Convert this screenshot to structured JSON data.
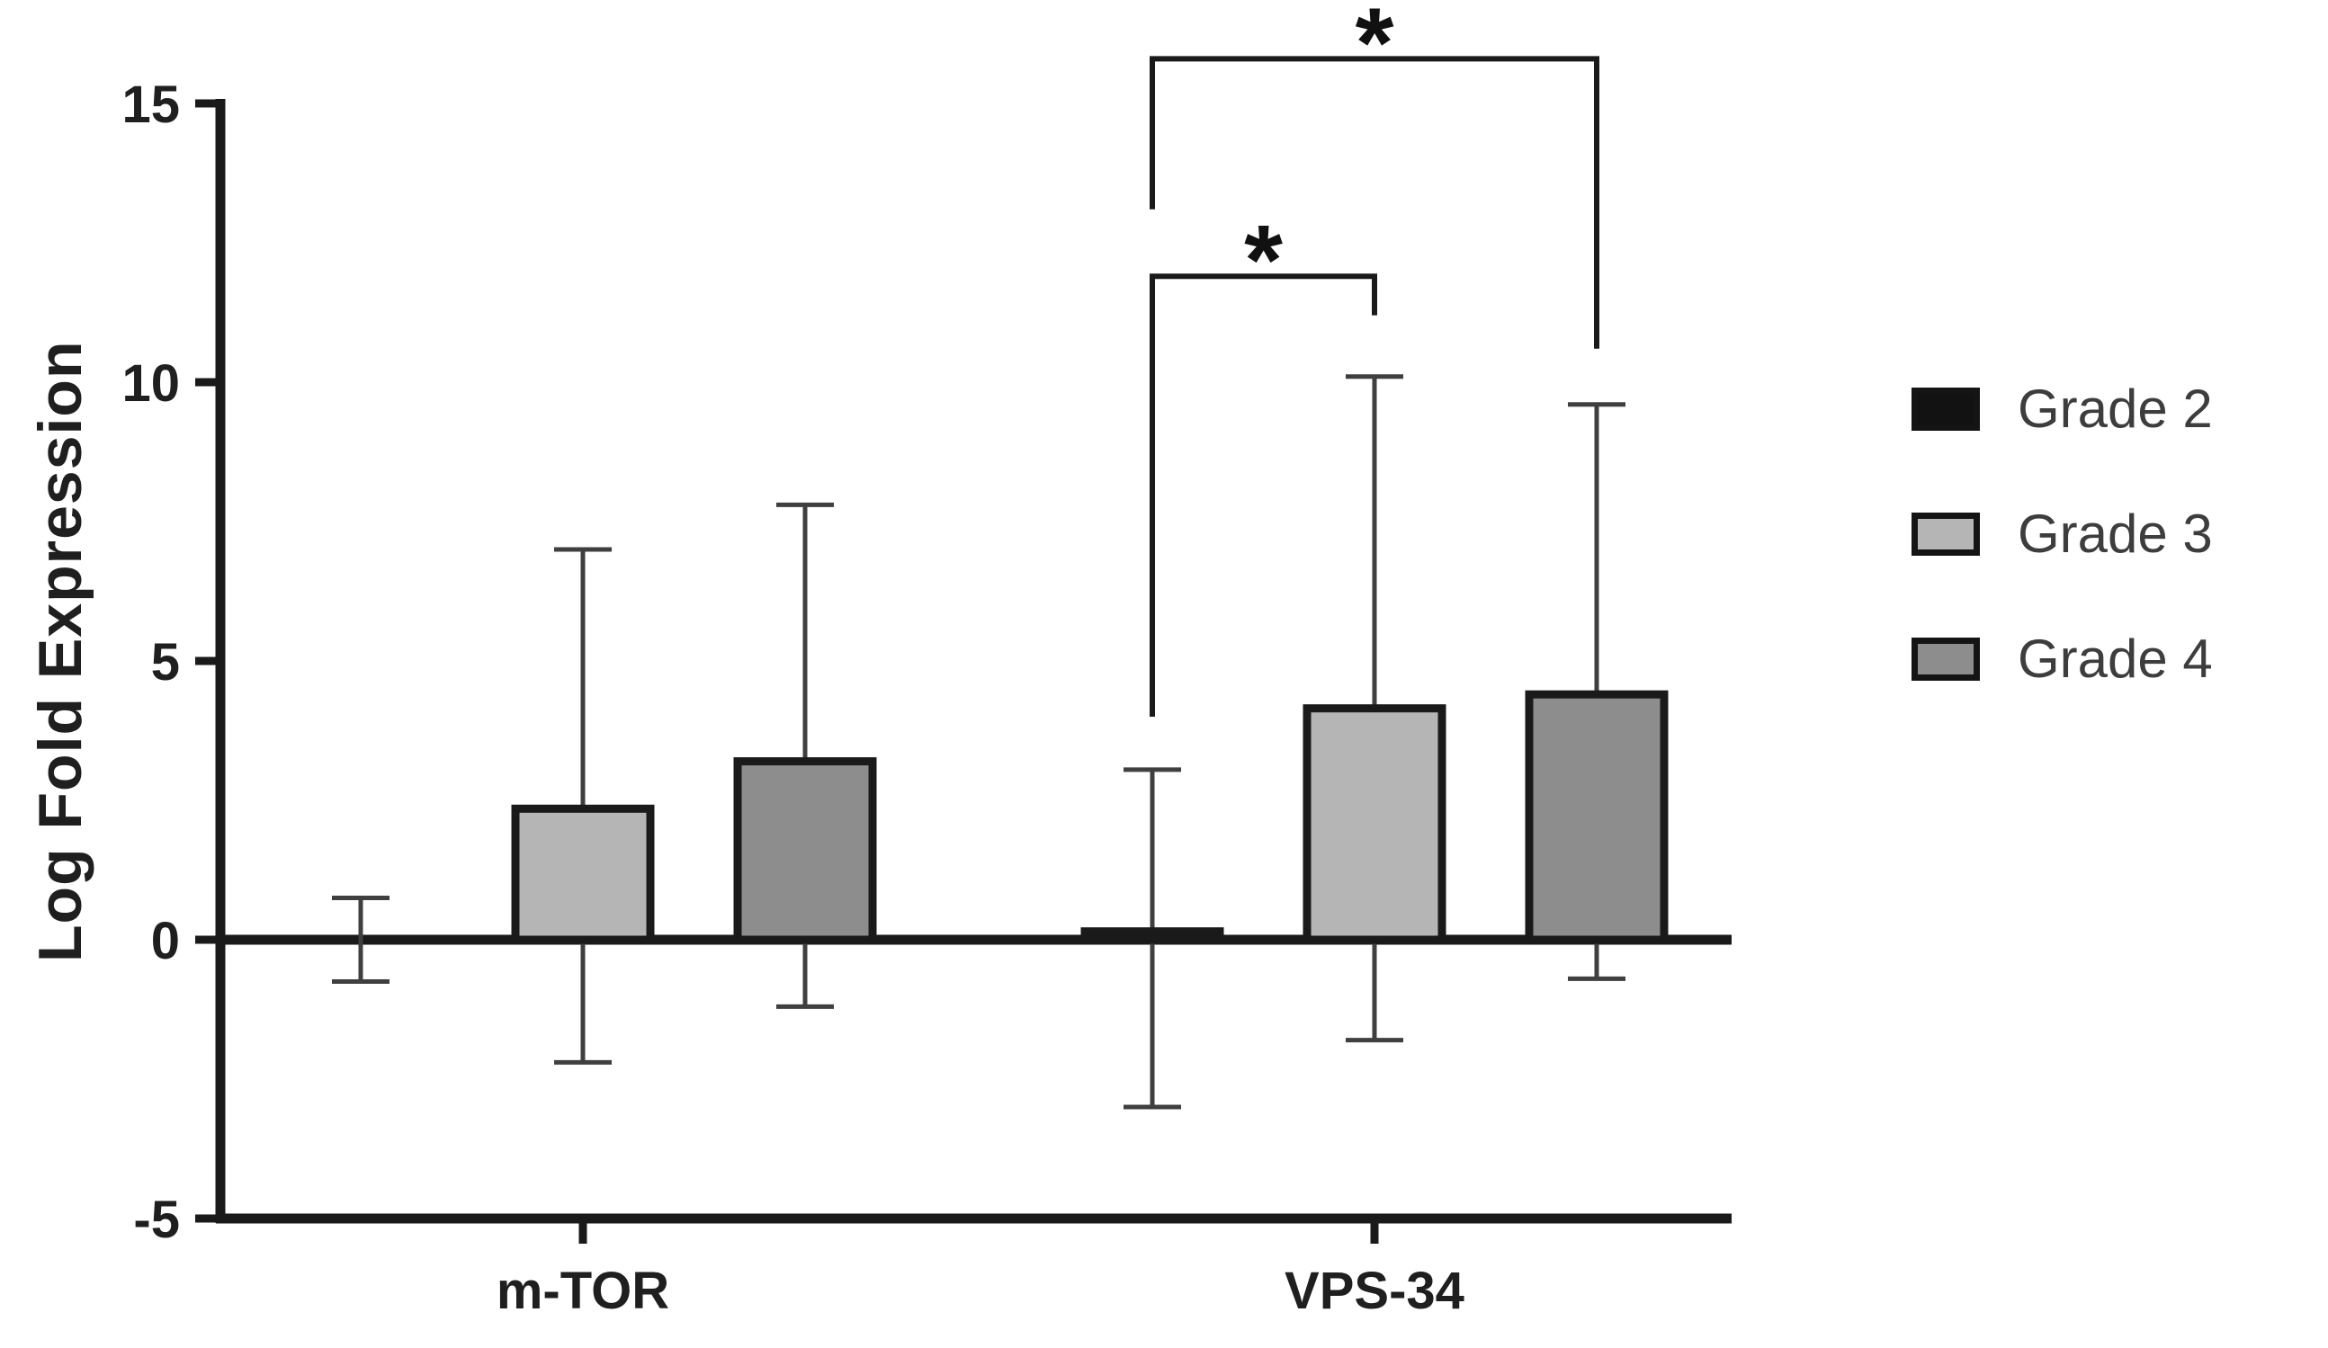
{
  "chart_data": {
    "type": "bar",
    "title": "",
    "xlabel": "",
    "ylabel": "Log Fold Expression",
    "ylim": [
      -5,
      15
    ],
    "yticks": [
      15,
      10,
      5,
      0,
      -5
    ],
    "grid": false,
    "legend_position": "right",
    "categories": [
      "m-TOR",
      "VPS-34"
    ],
    "series": [
      {
        "name": "Grade 2",
        "color": "#121212",
        "values": [
          {
            "mean": 0.0,
            "upper": 0.75,
            "lower": -0.75
          },
          {
            "mean": 0.15,
            "upper": 3.05,
            "lower": -3.0
          }
        ]
      },
      {
        "name": "Grade 3",
        "color": "#b5b5b5",
        "values": [
          {
            "mean": 2.35,
            "upper": 7.0,
            "lower": -2.2
          },
          {
            "mean": 4.15,
            "upper": 10.1,
            "lower": -1.8
          }
        ]
      },
      {
        "name": "Grade 4",
        "color": "#8d8d8d",
        "values": [
          {
            "mean": 3.2,
            "upper": 7.8,
            "lower": -1.2
          },
          {
            "mean": 4.4,
            "upper": 9.6,
            "lower": -0.7
          }
        ]
      }
    ],
    "significance": [
      {
        "category": "VPS-34",
        "from_series": "Grade 2",
        "to_series": "Grade 3",
        "top": 11.9,
        "left_drop_to": 4.0,
        "right_drop_to": 11.2,
        "label": "*"
      },
      {
        "category": "VPS-34",
        "from_series": "Grade 2",
        "to_series": "Grade 4",
        "top": 15.8,
        "left_drop_to": 13.1,
        "right_drop_to": 10.6,
        "label": "*"
      }
    ]
  }
}
